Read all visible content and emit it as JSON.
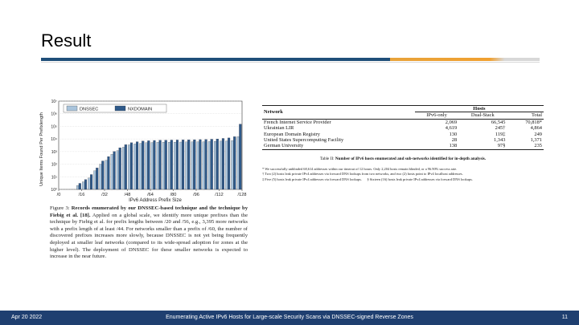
{
  "slide": {
    "title": "Result"
  },
  "chart": {
    "ylabel": "Unique Items Found Per Prefixlength",
    "xlabel": "IPv6 Address Prefix Size",
    "legend": [
      "DNSSEC",
      "NXDOMAIN"
    ],
    "yticks": [
      "10⁷",
      "10⁶",
      "10⁵",
      "10⁴",
      "10³",
      "10²",
      "10¹",
      "10⁰"
    ],
    "xticks": [
      "/0",
      "/16",
      "/32",
      "/48",
      "/64",
      "/80",
      "/96",
      "/112",
      "/128"
    ]
  },
  "chart_data": {
    "type": "bar",
    "title": "",
    "xlabel": "IPv6 Address Prefix Size",
    "ylabel": "Unique Items Found Per Prefixlength",
    "ylim": [
      1,
      10000000
    ],
    "yscale": "log",
    "legend": "top-left",
    "colors": {
      "DNSSEC": "#a9c4dc",
      "NXDOMAIN": "#2f5a8a"
    },
    "x": [
      2,
      6,
      10,
      14,
      18,
      22,
      26,
      30,
      34,
      38,
      42,
      46,
      50,
      54,
      58,
      62,
      66,
      70,
      74,
      78,
      82,
      86,
      90,
      94,
      98,
      102,
      106,
      110,
      114,
      118,
      122,
      126
    ],
    "series": [
      {
        "name": "DNSSEC",
        "values": [
          1,
          1,
          1,
          2,
          4,
          8,
          30,
          100,
          200,
          600,
          1200,
          2200,
          3400,
          4000,
          4500,
          5000,
          5200,
          5400,
          5500,
          5600,
          5600,
          5700,
          5800,
          5900,
          6000,
          6000,
          6200,
          6500,
          6800,
          7000,
          7500,
          15000
        ]
      },
      {
        "name": "NXDOMAIN",
        "values": [
          1,
          1,
          1,
          3,
          6,
          15,
          50,
          180,
          400,
          1000,
          2000,
          3500,
          5000,
          6000,
          6800,
          7200,
          7600,
          7900,
          8000,
          8200,
          8300,
          8400,
          8500,
          8700,
          8900,
          9000,
          9500,
          10000,
          11000,
          12000,
          15000,
          150000
        ]
      }
    ]
  },
  "caption": {
    "lead": "Figure 3: ",
    "bold": "Records enumerated by our DNSSEC-based technique and the technique by Fiebig et al. [18].",
    "body": " Applied on a global scale, we identify more unique prefixes than the technique by Fiebig et al. for prefix lengths between /20 and /56, e.g., 3,395 more networks with a prefix length of at least /44. For networks smaller than a prefix of /60, the number of discovered prefixes increases more slowly, because DNSSEC is not yet being frequently deployed at smaller leaf networks (compared to its wide-spread adoption for zones at the higher level). The deployment of DNSSEC for these smaller networks is expected to increase in the near future."
  },
  "table": {
    "h_network": "Network",
    "h_hosts": "Hosts",
    "h_cols": [
      "IPv6-only",
      "Dual-Stack",
      "Total"
    ],
    "rows": [
      {
        "name": "French Internet Service Provider",
        "v6": "2,069",
        "ds": "66,545",
        "total": "70,818*"
      },
      {
        "name": "Ukrainian LIR",
        "v6": "4,619",
        "ds": "245†",
        "total": "4,864"
      },
      {
        "name": "European Domain Registry",
        "v6": "130",
        "ds": "119‡",
        "total": "249"
      },
      {
        "name": "United States Supercomputing Facility",
        "v6": "28",
        "ds": "1,343",
        "total": "1,371"
      },
      {
        "name": "German University",
        "v6": "138",
        "ds": "97§",
        "total": "235"
      }
    ],
    "caption_lead": "Table II: ",
    "caption_bold": "Number of IPv6 hosts enumerated and sub-networks identified for in-depth analysis.",
    "footnotes": [
      "* We successfully unblinded 68,614 addresses within our timeout of 12 hours. Only 2,204 hosts remain blinded, or a 96.90% success rate.",
      "† Two (2) hosts leak private IPv4 addresses via forward DNS lookups from two networks, and two (2) hosts point to IPv4 localhost addresses.",
      "‡ Five (5) hosts leak private IPv4 addresses via forward DNS lookups.      § Sixteen (16) hosts leak private IPv4 addresses via forward DNS lookups."
    ]
  },
  "footer": {
    "date": "Apr 20 2022",
    "title": "Enumerating Active IPv6 Hosts for Large-scale Security Scans via DNSSEC-signed Reverse Zones",
    "page": "11"
  }
}
